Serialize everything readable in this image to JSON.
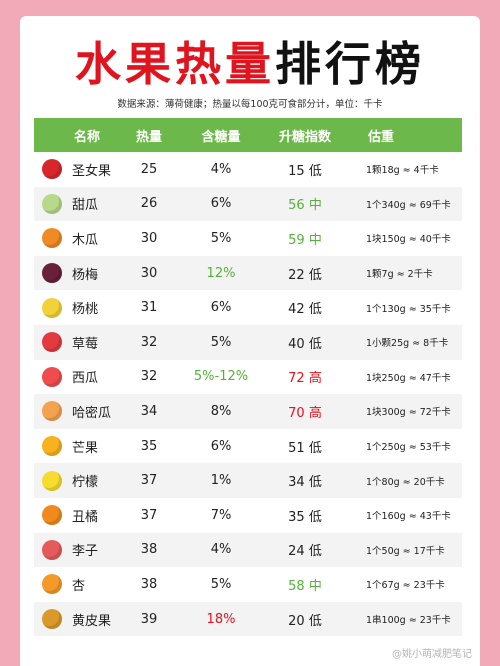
{
  "title_part1": "水果热量",
  "title_part2": "排行榜",
  "subtitle": "数据来源：薄荷健康；热量以每100克可食部分计，单位：千卡",
  "colors": {
    "header_green": "#6cb84a",
    "accent_red": "#e0141e",
    "accent_green": "#55b139",
    "background_pink": "#f2a9b8"
  },
  "headers": {
    "name": "名称",
    "kcal": "热量",
    "sugar": "含糖量",
    "gi": "升糖指数",
    "estimate": "估重"
  },
  "rows": [
    {
      "icon": "cherry-tomato-icon",
      "icon_color": "#d8272b",
      "name": "圣女果",
      "kcal": "25",
      "sugar": "4%",
      "sugar_hl": "",
      "gi": "15 低",
      "gi_hl": "",
      "est": "1颗18g ≈ 4千卡"
    },
    {
      "icon": "melon-icon",
      "icon_color": "#b7d98a",
      "name": "甜瓜",
      "kcal": "26",
      "sugar": "6%",
      "sugar_hl": "",
      "gi": "56 中",
      "gi_hl": "green",
      "est": "1个340g ≈ 69千卡"
    },
    {
      "icon": "papaya-icon",
      "icon_color": "#f08a24",
      "name": "木瓜",
      "kcal": "30",
      "sugar": "5%",
      "sugar_hl": "",
      "gi": "59 中",
      "gi_hl": "green",
      "est": "1块150g ≈ 40千卡"
    },
    {
      "icon": "bayberry-icon",
      "icon_color": "#6a1f3a",
      "name": "杨梅",
      "kcal": "30",
      "sugar": "12%",
      "sugar_hl": "green",
      "gi": "22 低",
      "gi_hl": "",
      "est": "1颗7g ≈ 2千卡"
    },
    {
      "icon": "starfruit-icon",
      "icon_color": "#f2d23a",
      "name": "杨桃",
      "kcal": "31",
      "sugar": "6%",
      "sugar_hl": "",
      "gi": "42 低",
      "gi_hl": "",
      "est": "1个130g ≈ 35千卡"
    },
    {
      "icon": "strawberry-icon",
      "icon_color": "#e23a3f",
      "name": "草莓",
      "kcal": "32",
      "sugar": "5%",
      "sugar_hl": "",
      "gi": "40 低",
      "gi_hl": "",
      "est": "1小颗25g ≈ 8千卡"
    },
    {
      "icon": "watermelon-icon",
      "icon_color": "#ef4d4d",
      "name": "西瓜",
      "kcal": "32",
      "sugar": "5%-12%",
      "sugar_hl": "green",
      "gi": "72 高",
      "gi_hl": "red",
      "est": "1块250g ≈ 47千卡"
    },
    {
      "icon": "cantaloupe-icon",
      "icon_color": "#f3a24f",
      "name": "哈密瓜",
      "kcal": "34",
      "sugar": "8%",
      "sugar_hl": "",
      "gi": "70 高",
      "gi_hl": "red",
      "est": "1块300g ≈ 72千卡"
    },
    {
      "icon": "mango-icon",
      "icon_color": "#f7b21e",
      "name": "芒果",
      "kcal": "35",
      "sugar": "6%",
      "sugar_hl": "",
      "gi": "51 低",
      "gi_hl": "",
      "est": "1个250g ≈ 53千卡"
    },
    {
      "icon": "lemon-icon",
      "icon_color": "#f5dc2f",
      "name": "柠檬",
      "kcal": "37",
      "sugar": "1%",
      "sugar_hl": "",
      "gi": "34 低",
      "gi_hl": "",
      "est": "1个80g ≈ 20千卡"
    },
    {
      "icon": "tangerine-icon",
      "icon_color": "#f08a1c",
      "name": "丑橘",
      "kcal": "37",
      "sugar": "7%",
      "sugar_hl": "",
      "gi": "35 低",
      "gi_hl": "",
      "est": "1个160g ≈ 43千卡"
    },
    {
      "icon": "plum-icon",
      "icon_color": "#e55a5a",
      "name": "李子",
      "kcal": "38",
      "sugar": "4%",
      "sugar_hl": "",
      "gi": "24 低",
      "gi_hl": "",
      "est": "1个50g ≈ 17千卡"
    },
    {
      "icon": "apricot-icon",
      "icon_color": "#f39a2a",
      "name": "杏",
      "kcal": "38",
      "sugar": "5%",
      "sugar_hl": "",
      "gi": "58 中",
      "gi_hl": "green",
      "est": "1个67g ≈ 23千卡"
    },
    {
      "icon": "wampee-icon",
      "icon_color": "#d99a2b",
      "name": "黄皮果",
      "kcal": "39",
      "sugar": "18%",
      "sugar_hl": "red",
      "gi": "20 低",
      "gi_hl": "",
      "est": "1串100g ≈ 23千卡"
    }
  ],
  "watermark": "@姚小萌减肥笔记"
}
